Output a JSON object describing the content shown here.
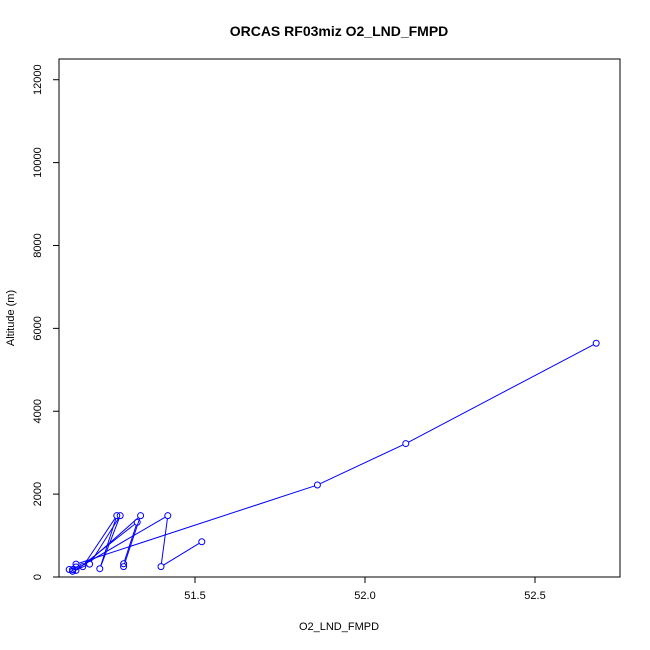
{
  "chart_data": {
    "type": "scatter",
    "title": "ORCAS RF03miz O2_LND_FMPD",
    "xlabel": "O2_LND_FMPD",
    "ylabel": "Altitude (m)",
    "xlim": [
      51.1,
      52.75
    ],
    "ylim": [
      0,
      12500
    ],
    "x_ticks": [
      51.5,
      52.0,
      52.5
    ],
    "x_tick_labels": [
      "51.5",
      "52.0",
      "52.5"
    ],
    "y_ticks": [
      0,
      2000,
      4000,
      6000,
      8000,
      10000,
      12000
    ],
    "y_tick_labels": [
      "0",
      "2000",
      "4000",
      "6000",
      "8000",
      "10000",
      "12000"
    ],
    "grid": false,
    "color": "#0000ff",
    "series": [
      {
        "connected": true,
        "x": [
          52.68,
          52.12,
          51.86,
          51.15,
          51.15,
          51.15,
          51.33,
          51.29,
          51.29,
          51.34,
          51.17,
          51.27,
          51.22,
          51.28,
          51.19,
          51.14,
          51.13,
          51.14,
          51.14,
          51.42,
          51.4,
          51.52
        ],
        "y": [
          5640,
          3220,
          2220,
          310,
          240,
          160,
          1320,
          320,
          250,
          1480,
          250,
          1480,
          200,
          1480,
          310,
          140,
          180,
          180,
          140,
          1480,
          250,
          850
        ]
      }
    ]
  }
}
